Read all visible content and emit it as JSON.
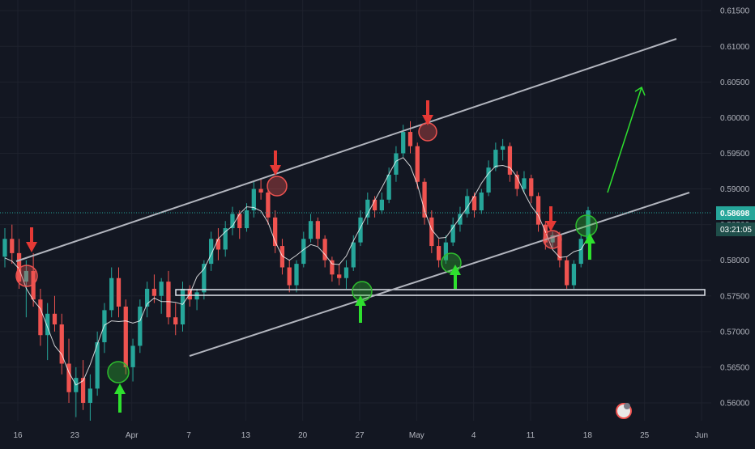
{
  "chart_data": {
    "type": "candlestick",
    "x_ticks": [
      "16",
      "23",
      "Apr",
      "7",
      "13",
      "20",
      "27",
      "May",
      "4",
      "11",
      "18",
      "25",
      "Jun"
    ],
    "y_ticks": [
      "0.61500",
      "0.61000",
      "0.60500",
      "0.60000",
      "0.59500",
      "0.59000",
      "0.58500",
      "0.58000",
      "0.57500",
      "0.57000",
      "0.56500",
      "0.56000"
    ],
    "y_range": [
      0.5575,
      0.6165
    ],
    "last_price": "0.58698",
    "countdown": "03:21:05",
    "colors": {
      "background": "#131722",
      "up": "#26a69a",
      "down": "#ef5350",
      "channel": "#b2b5be",
      "support_box": "#e0e3eb",
      "price_line": "#26a69a",
      "price_label": "#26a69a",
      "countdown_label": "#1f4e4a",
      "resistance_marker": "#ef5350",
      "support_marker": "#2ebd2e",
      "projection_arrow": "#2ee02e"
    },
    "series": [
      {
        "type": "ohlc",
        "values": [
          [
            0.5805,
            0.5845,
            0.579,
            0.583
          ],
          [
            0.583,
            0.585,
            0.5795,
            0.581
          ],
          [
            0.581,
            0.583,
            0.576,
            0.577
          ],
          [
            0.577,
            0.58,
            0.572,
            0.5785
          ],
          [
            0.5785,
            0.581,
            0.5735,
            0.5745
          ],
          [
            0.5745,
            0.576,
            0.568,
            0.5695
          ],
          [
            0.5695,
            0.574,
            0.566,
            0.5725
          ],
          [
            0.5725,
            0.575,
            0.57,
            0.571
          ],
          [
            0.571,
            0.5725,
            0.564,
            0.5655
          ],
          [
            0.5655,
            0.569,
            0.56,
            0.5615
          ],
          [
            0.5615,
            0.565,
            0.558,
            0.5635
          ],
          [
            0.5635,
            0.566,
            0.559,
            0.56
          ],
          [
            0.56,
            0.564,
            0.5575,
            0.562
          ],
          [
            0.562,
            0.57,
            0.561,
            0.5685
          ],
          [
            0.5685,
            0.574,
            0.567,
            0.573
          ],
          [
            0.573,
            0.579,
            0.572,
            0.5775
          ],
          [
            0.5775,
            0.579,
            0.572,
            0.5735
          ],
          [
            0.5735,
            0.5745,
            0.564,
            0.565
          ],
          [
            0.565,
            0.569,
            0.563,
            0.568
          ],
          [
            0.568,
            0.5745,
            0.567,
            0.5735
          ],
          [
            0.5735,
            0.577,
            0.572,
            0.576
          ],
          [
            0.576,
            0.578,
            0.574,
            0.575
          ],
          [
            0.575,
            0.5775,
            0.5725,
            0.577
          ],
          [
            0.577,
            0.5785,
            0.571,
            0.572
          ],
          [
            0.572,
            0.574,
            0.5695,
            0.571
          ],
          [
            0.571,
            0.577,
            0.57,
            0.576
          ],
          [
            0.576,
            0.5765,
            0.5735,
            0.5745
          ],
          [
            0.5745,
            0.576,
            0.573,
            0.5755
          ],
          [
            0.5755,
            0.58,
            0.5745,
            0.5795
          ],
          [
            0.5795,
            0.584,
            0.5785,
            0.583
          ],
          [
            0.583,
            0.5845,
            0.58,
            0.5815
          ],
          [
            0.5815,
            0.5855,
            0.5805,
            0.5845
          ],
          [
            0.5845,
            0.5875,
            0.5835,
            0.5865
          ],
          [
            0.5865,
            0.587,
            0.583,
            0.5845
          ],
          [
            0.5845,
            0.588,
            0.584,
            0.587
          ],
          [
            0.587,
            0.591,
            0.586,
            0.59
          ],
          [
            0.59,
            0.5915,
            0.5885,
            0.5895
          ],
          [
            0.5895,
            0.59,
            0.585,
            0.586
          ],
          [
            0.586,
            0.587,
            0.581,
            0.582
          ],
          [
            0.582,
            0.583,
            0.578,
            0.579
          ],
          [
            0.579,
            0.58,
            0.5755,
            0.5765
          ],
          [
            0.5765,
            0.58,
            0.5755,
            0.5795
          ],
          [
            0.5795,
            0.584,
            0.579,
            0.583
          ],
          [
            0.583,
            0.5865,
            0.5825,
            0.5855
          ],
          [
            0.5855,
            0.586,
            0.582,
            0.583
          ],
          [
            0.583,
            0.5835,
            0.579,
            0.58
          ],
          [
            0.58,
            0.5805,
            0.577,
            0.578
          ],
          [
            0.578,
            0.5795,
            0.5765,
            0.5775
          ],
          [
            0.5775,
            0.58,
            0.576,
            0.579
          ],
          [
            0.579,
            0.5835,
            0.5785,
            0.5825
          ],
          [
            0.5825,
            0.587,
            0.582,
            0.586
          ],
          [
            0.586,
            0.5895,
            0.585,
            0.5885
          ],
          [
            0.5885,
            0.589,
            0.586,
            0.587
          ],
          [
            0.587,
            0.5895,
            0.5865,
            0.5885
          ],
          [
            0.5885,
            0.593,
            0.588,
            0.592
          ],
          [
            0.592,
            0.596,
            0.591,
            0.595
          ],
          [
            0.595,
            0.599,
            0.5945,
            0.598
          ],
          [
            0.598,
            0.5995,
            0.595,
            0.596
          ],
          [
            0.596,
            0.5965,
            0.59,
            0.591
          ],
          [
            0.591,
            0.5915,
            0.585,
            0.586
          ],
          [
            0.586,
            0.587,
            0.581,
            0.582
          ],
          [
            0.582,
            0.583,
            0.579,
            0.58
          ],
          [
            0.58,
            0.5835,
            0.5795,
            0.5825
          ],
          [
            0.5825,
            0.586,
            0.582,
            0.585
          ],
          [
            0.585,
            0.5875,
            0.584,
            0.5865
          ],
          [
            0.5865,
            0.59,
            0.586,
            0.589
          ],
          [
            0.589,
            0.5895,
            0.586,
            0.587
          ],
          [
            0.587,
            0.59,
            0.5865,
            0.5895
          ],
          [
            0.5895,
            0.594,
            0.589,
            0.593
          ],
          [
            0.593,
            0.5965,
            0.5925,
            0.5955
          ],
          [
            0.5955,
            0.597,
            0.594,
            0.596
          ],
          [
            0.596,
            0.5965,
            0.591,
            0.592
          ],
          [
            0.592,
            0.5925,
            0.589,
            0.59
          ],
          [
            0.59,
            0.5925,
            0.5895,
            0.5915
          ],
          [
            0.5915,
            0.592,
            0.588,
            0.589
          ],
          [
            0.589,
            0.5895,
            0.584,
            0.585
          ],
          [
            0.585,
            0.5855,
            0.5815,
            0.5825
          ],
          [
            0.5825,
            0.584,
            0.5815,
            0.5835
          ],
          [
            0.5835,
            0.584,
            0.579,
            0.58
          ],
          [
            0.58,
            0.5805,
            0.576,
            0.5765
          ],
          [
            0.5765,
            0.58,
            0.576,
            0.5795
          ],
          [
            0.5795,
            0.5835,
            0.579,
            0.583
          ],
          [
            0.583,
            0.5875,
            0.5825,
            0.587
          ]
        ]
      }
    ]
  }
}
